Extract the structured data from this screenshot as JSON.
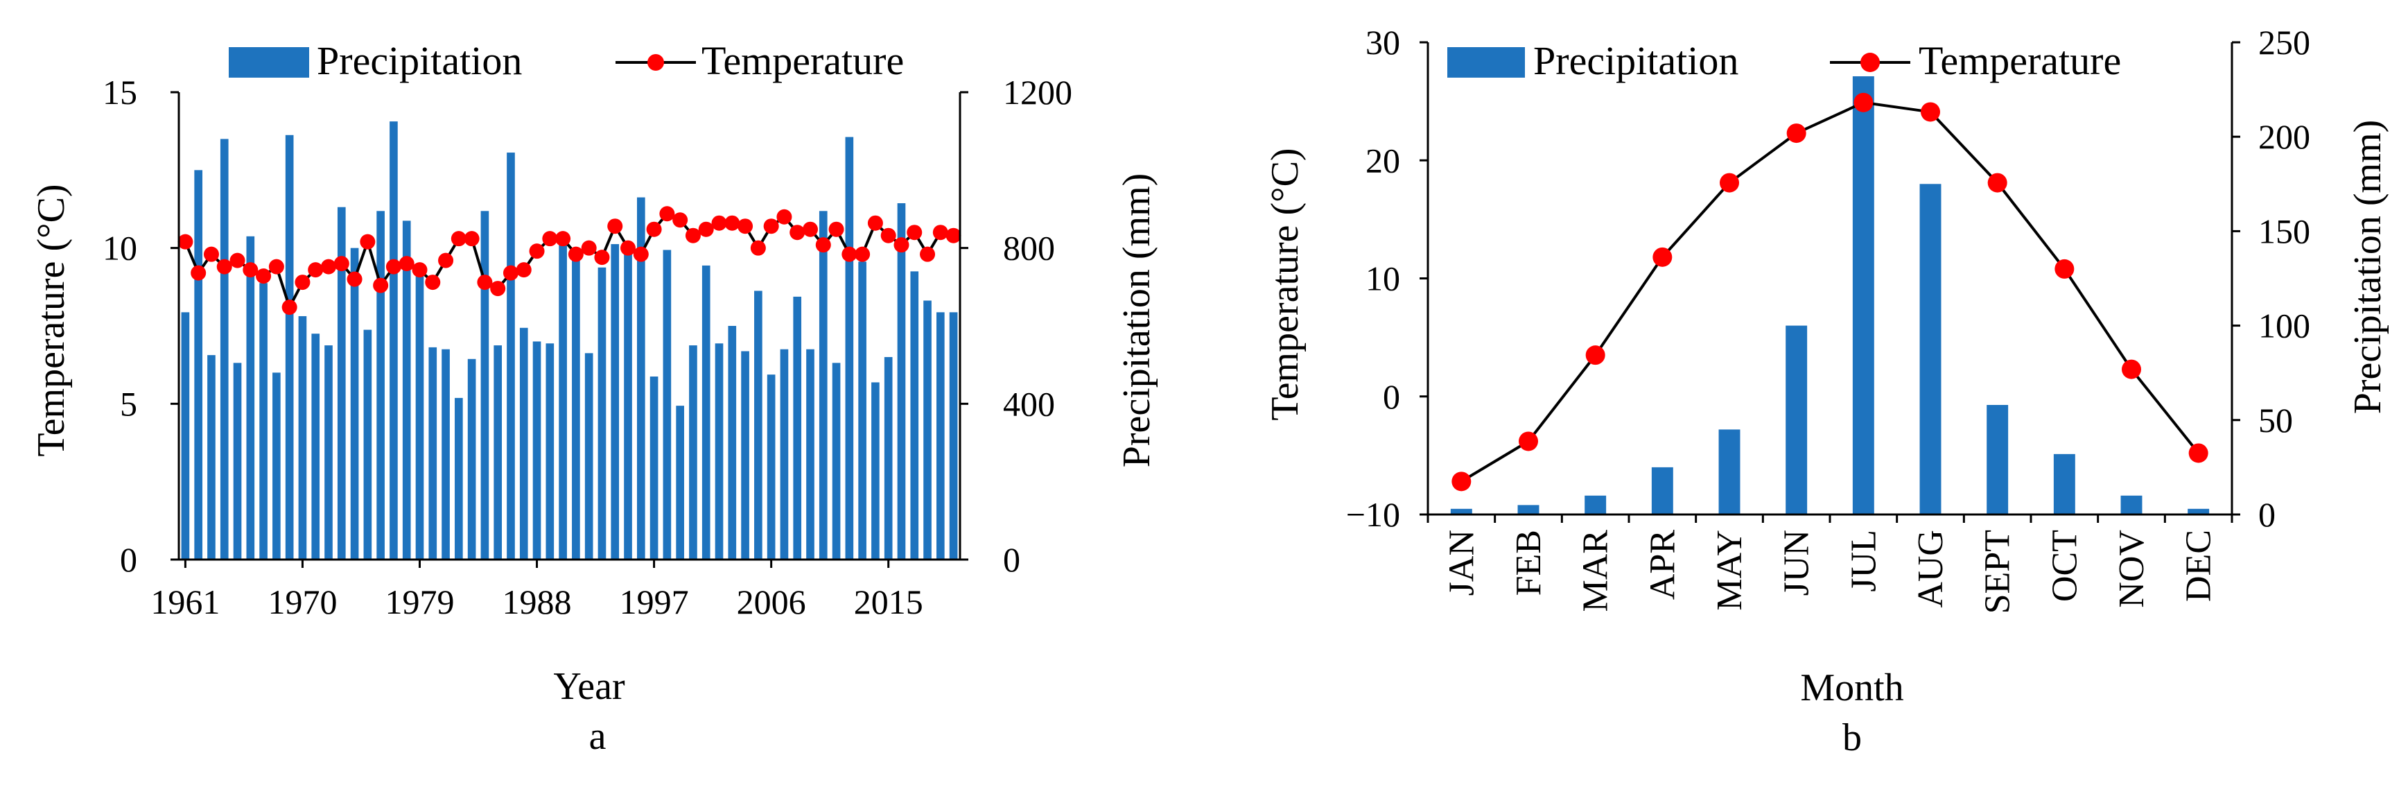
{
  "colors": {
    "precip": "#1E73BE",
    "temp_marker": "#FF0000",
    "line": "#000000",
    "axis": "#000000"
  },
  "chart_data": [
    {
      "id": "a",
      "type": "bar+line",
      "panel_label": "a",
      "xlabel": "Year",
      "ylabel_left": "Temperature (°C)",
      "ylabel_right": "Precipitation (mm)",
      "ylim_left": [
        0,
        15
      ],
      "ylim_right": [
        0,
        1200
      ],
      "yticks_left": [
        "0",
        "5",
        "10",
        "15"
      ],
      "yticks_right": [
        "0",
        "400",
        "800",
        "1200"
      ],
      "xtick_labels": [
        "1961",
        "1970",
        "1979",
        "1988",
        "1997",
        "2006",
        "2015"
      ],
      "legend": {
        "precip": "Precipitation",
        "temp": "Temperature"
      },
      "years": [
        1961,
        1962,
        1963,
        1964,
        1965,
        1966,
        1967,
        1968,
        1969,
        1970,
        1971,
        1972,
        1973,
        1974,
        1975,
        1976,
        1977,
        1978,
        1979,
        1980,
        1981,
        1982,
        1983,
        1984,
        1985,
        1986,
        1987,
        1988,
        1989,
        1990,
        1991,
        1992,
        1993,
        1994,
        1995,
        1996,
        1997,
        1998,
        1999,
        2000,
        2001,
        2002,
        2003,
        2004,
        2005,
        2006,
        2007,
        2008,
        2009,
        2010,
        2011,
        2012,
        2013,
        2014,
        2015,
        2016,
        2017,
        2018,
        2019,
        2020
      ],
      "series": [
        {
          "name": "Precipitation",
          "axis": "right",
          "kind": "bar",
          "values": [
            635,
            1000,
            525,
            1080,
            505,
            830,
            710,
            480,
            1090,
            625,
            580,
            550,
            905,
            800,
            590,
            895,
            1125,
            870,
            740,
            545,
            540,
            415,
            515,
            895,
            550,
            1045,
            595,
            560,
            555,
            840,
            770,
            530,
            750,
            810,
            785,
            930,
            470,
            795,
            395,
            550,
            755,
            555,
            600,
            535,
            690,
            475,
            540,
            675,
            540,
            895,
            505,
            1085,
            765,
            455,
            520,
            915,
            740,
            665,
            635,
            635
          ]
        },
        {
          "name": "Temperature",
          "axis": "left",
          "kind": "line",
          "values": [
            10.2,
            9.2,
            9.8,
            9.4,
            9.6,
            9.3,
            9.1,
            9.4,
            8.1,
            8.9,
            9.3,
            9.4,
            9.5,
            9.0,
            10.2,
            8.8,
            9.4,
            9.5,
            9.3,
            8.9,
            9.6,
            10.3,
            10.3,
            8.9,
            8.7,
            9.2,
            9.3,
            9.9,
            10.3,
            10.3,
            9.8,
            10.0,
            9.7,
            10.7,
            10.0,
            9.8,
            10.6,
            11.1,
            10.9,
            10.4,
            10.6,
            10.8,
            10.8,
            10.7,
            10.0,
            10.7,
            11.0,
            10.5,
            10.6,
            10.1,
            10.6,
            9.8,
            9.8,
            10.8,
            10.4,
            10.1,
            10.5,
            9.8,
            10.5,
            10.4
          ]
        }
      ]
    },
    {
      "id": "b",
      "type": "bar+line",
      "panel_label": "b",
      "xlabel": "Month",
      "ylabel_left": "Temperature (°C)",
      "ylabel_right": "Precipitation (mm)",
      "ylim_left": [
        -10,
        30
      ],
      "ylim_right": [
        0,
        250
      ],
      "yticks_left": [
        "−10",
        "0",
        "10",
        "20",
        "30"
      ],
      "yticks_right": [
        "0",
        "50",
        "100",
        "150",
        "200",
        "250"
      ],
      "categories": [
        "JAN",
        "FEB",
        "MAR",
        "APR",
        "MAY",
        "JUN",
        "JUL",
        "AUG",
        "SEPT",
        "OCT",
        "NOV",
        "DEC"
      ],
      "legend": {
        "precip": "Precipitation",
        "temp": "Temperature"
      },
      "series": [
        {
          "name": "Precipitation",
          "axis": "right",
          "kind": "bar",
          "values": [
            3,
            5,
            10,
            25,
            45,
            100,
            232,
            175,
            58,
            32,
            10,
            3
          ]
        },
        {
          "name": "Temperature",
          "axis": "left",
          "kind": "line",
          "values": [
            -7.2,
            -3.8,
            3.5,
            11.8,
            18.1,
            22.3,
            24.9,
            24.1,
            18.1,
            10.8,
            2.3,
            -4.8
          ]
        }
      ]
    }
  ]
}
